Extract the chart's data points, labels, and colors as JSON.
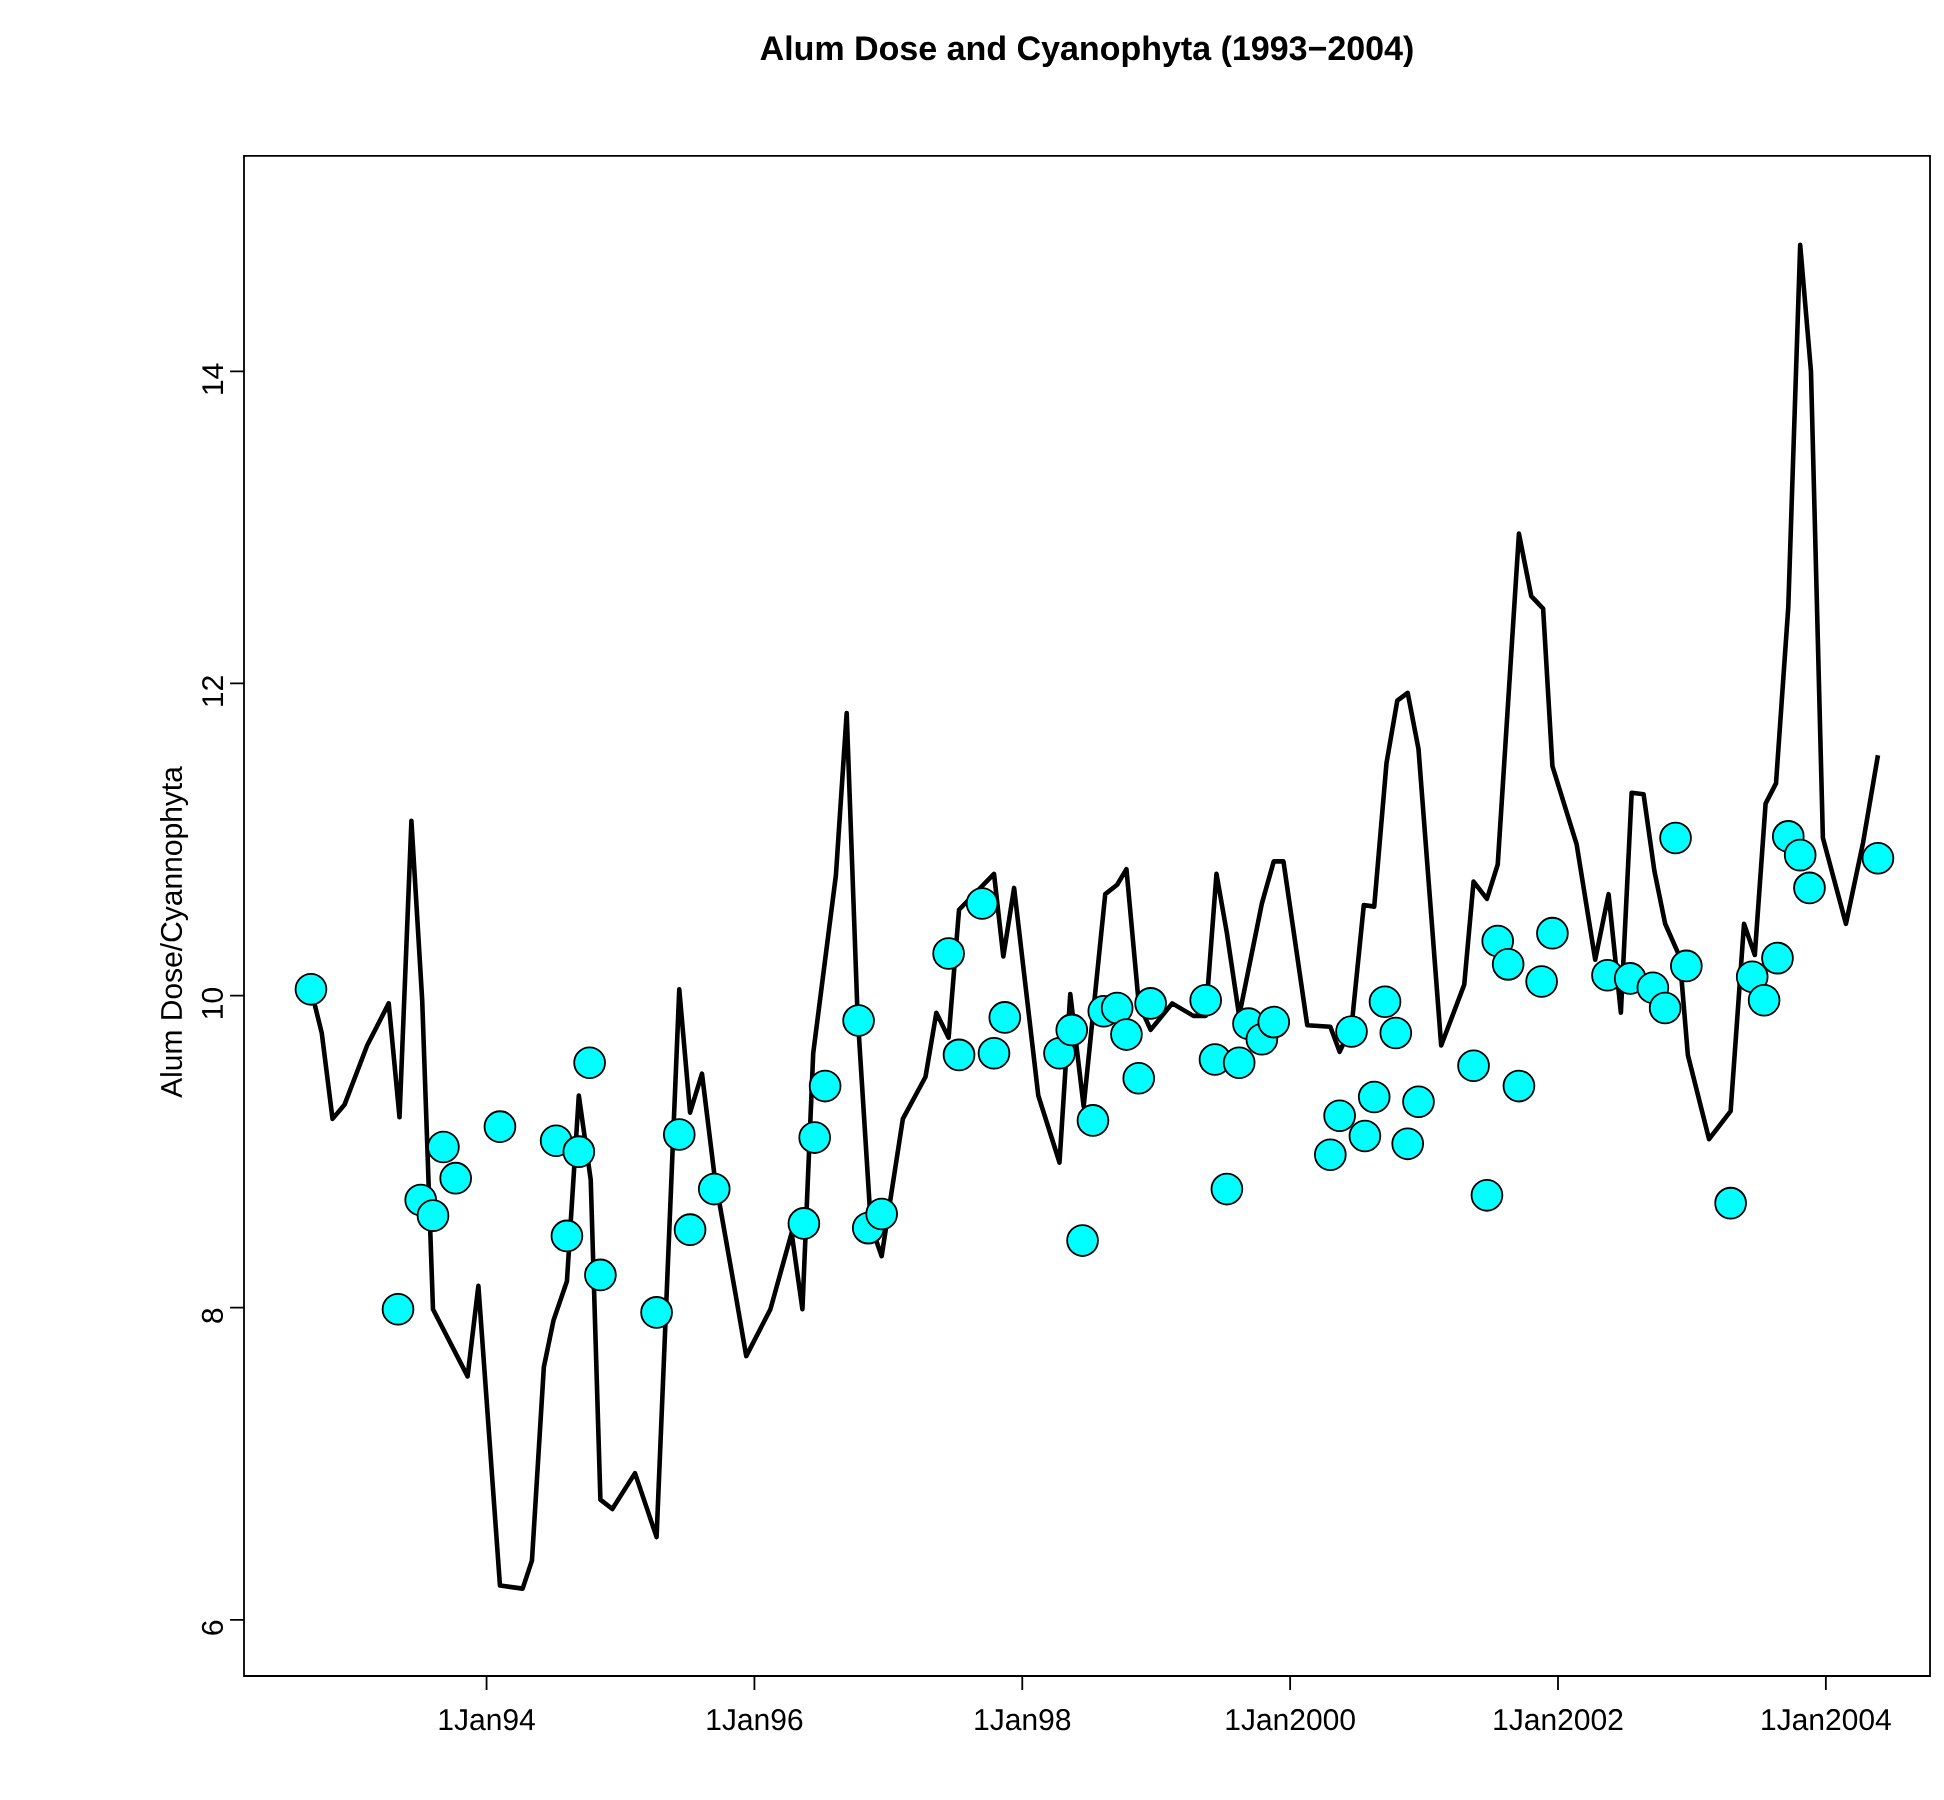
{
  "chart_data": {
    "type": "line",
    "title": "Alum Dose and Cyanophyta (1993−2004)",
    "ylabel": "Alum Dose/Cyannophyta",
    "xlim": [
      "1992-03-09",
      "2004-10-11"
    ],
    "ylim": [
      5.64,
      15.38
    ],
    "xticks": [
      {
        "value": "1994-01-01",
        "label": "1Jan94"
      },
      {
        "value": "1996-01-01",
        "label": "1Jan96"
      },
      {
        "value": "1998-01-01",
        "label": "1Jan98"
      },
      {
        "value": "2000-01-01",
        "label": "1Jan2000"
      },
      {
        "value": "2002-01-01",
        "label": "1Jan2002"
      },
      {
        "value": "2004-01-01",
        "label": "1Jan2004"
      }
    ],
    "yticks": [
      6,
      8,
      10,
      12,
      14
    ],
    "series": [
      {
        "color": "#000000",
        "line_style": "solid",
        "marker": "none",
        "x": [
          "1992-09-09",
          "1992-10-08",
          "1992-11-07",
          "1992-12-09",
          "1993-02-10",
          "1993-04-08",
          "1993-05-07",
          "1993-06-09",
          "1993-07-08",
          "1993-08-07",
          "1993-11-10",
          "1993-12-09",
          "1994-02-07",
          "1994-04-08",
          "1994-05-03",
          "1994-06-05",
          "1994-07-01",
          "1994-08-07",
          "1994-09-09",
          "1994-10-11",
          "1994-11-07",
          "1994-12-09",
          "1995-02-10",
          "1995-04-08",
          "1995-06-09",
          "1995-07-08",
          "1995-08-10",
          "1995-09-13",
          "1995-11-10",
          "1995-12-09",
          "1996-02-14",
          "1996-04-11",
          "1996-05-10",
          "1996-06-09",
          "1996-08-10",
          "1996-09-09",
          "1996-10-08",
          "1996-11-14",
          "1996-12-13",
          "1997-02-10",
          "1997-04-11",
          "1997-05-10",
          "1997-06-13",
          "1997-07-11",
          "1997-10-15",
          "1997-11-10",
          "1997-12-09",
          "1998-02-14",
          "1998-04-11",
          "1998-05-10",
          "1998-06-16",
          "1998-08-14",
          "1998-09-16",
          "1998-10-11",
          "1998-11-14",
          "1998-12-16",
          "1999-02-14",
          "1999-04-11",
          "1999-05-14",
          "1999-06-13",
          "1999-07-11",
          "1999-08-14",
          "1999-10-15",
          "1999-11-17",
          "1999-12-13",
          "2000-02-17",
          "2000-04-19",
          "2000-05-14",
          "2000-06-16",
          "2000-07-19",
          "2000-08-17",
          "2000-09-20",
          "2000-10-19",
          "2000-11-17",
          "2000-12-16",
          "2001-02-17",
          "2001-04-19",
          "2001-05-14",
          "2001-06-20",
          "2001-07-19",
          "2001-09-16",
          "2001-10-19",
          "2001-11-21",
          "2001-12-16",
          "2002-02-21",
          "2002-04-11",
          "2002-05-17",
          "2002-06-20",
          "2002-07-19",
          "2002-08-21",
          "2002-09-20",
          "2002-10-19",
          "2002-11-28",
          "2002-12-20",
          "2003-02-17",
          "2003-04-15",
          "2003-05-21",
          "2003-06-20",
          "2003-07-19",
          "2003-08-17",
          "2003-09-20",
          "2003-10-22",
          "2003-11-21",
          "2003-12-23",
          "2004-02-25",
          "2004-04-11",
          "2004-05-21"
        ],
        "values": [
          10.04,
          9.76,
          9.21,
          9.3,
          9.68,
          9.95,
          9.22,
          11.12,
          9.97,
          7.99,
          7.56,
          8.14,
          6.22,
          6.2,
          6.38,
          7.62,
          7.92,
          8.17,
          9.36,
          8.82,
          6.77,
          6.71,
          6.94,
          6.53,
          10.04,
          9.25,
          9.5,
          8.86,
          8.09,
          7.69,
          7.99,
          8.48,
          7.99,
          9.63,
          10.77,
          11.81,
          9.89,
          8.53,
          8.33,
          9.21,
          9.48,
          9.89,
          9.73,
          10.55,
          10.78,
          10.25,
          10.69,
          9.36,
          8.93,
          10.01,
          9.29,
          10.65,
          10.71,
          10.81,
          9.95,
          9.78,
          9.95,
          9.87,
          9.87,
          10.78,
          10.4,
          9.87,
          10.59,
          10.86,
          10.86,
          9.81,
          9.8,
          9.64,
          9.8,
          10.58,
          10.57,
          11.49,
          11.89,
          11.94,
          11.58,
          9.68,
          10.07,
          10.73,
          10.62,
          10.84,
          12.96,
          12.56,
          12.48,
          11.47,
          10.97,
          10.23,
          10.65,
          9.89,
          11.3,
          11.29,
          10.8,
          10.46,
          10.25,
          9.62,
          9.08,
          9.26,
          10.46,
          10.26,
          11.23,
          11.36,
          12.49,
          14.81,
          14.0,
          11.01,
          10.46,
          10.98,
          11.54
        ]
      },
      {
        "type": "scatter",
        "color": "#00ffff",
        "marker": "circle",
        "x": [
          "1992-09-09",
          "1993-05-03",
          "1993-07-04",
          "1993-08-07",
          "1993-09-05",
          "1993-10-08",
          "1994-02-07",
          "1994-07-08",
          "1994-08-07",
          "1994-09-09",
          "1994-10-08",
          "1994-11-07",
          "1995-04-08",
          "1995-06-09",
          "1995-07-08",
          "1995-09-13",
          "1996-05-14",
          "1996-06-13",
          "1996-07-11",
          "1996-10-11",
          "1996-11-07",
          "1996-12-13",
          "1997-06-13",
          "1997-07-11",
          "1997-09-13",
          "1997-10-15",
          "1997-11-14",
          "1998-04-11",
          "1998-05-14",
          "1998-06-13",
          "1998-07-11",
          "1998-08-10",
          "1998-09-16",
          "1998-10-11",
          "1998-11-14",
          "1998-12-16",
          "1999-05-14",
          "1999-06-09",
          "1999-07-11",
          "1999-08-14",
          "1999-09-09",
          "1999-10-15",
          "1999-11-17",
          "2000-04-19",
          "2000-05-14",
          "2000-06-16",
          "2000-07-22",
          "2000-08-17",
          "2000-09-16",
          "2000-10-15",
          "2000-11-17",
          "2000-12-16",
          "2001-05-14",
          "2001-06-20",
          "2001-07-19",
          "2001-08-17",
          "2001-09-16",
          "2001-11-17",
          "2001-12-16",
          "2002-05-14",
          "2002-07-15",
          "2002-09-16",
          "2002-10-19",
          "2002-11-17",
          "2002-12-16",
          "2003-04-15",
          "2003-06-13",
          "2003-07-15",
          "2003-08-21",
          "2003-09-20",
          "2003-10-22",
          "2003-11-17",
          "2004-05-21"
        ],
        "values": [
          10.04,
          7.99,
          8.69,
          8.59,
          9.03,
          8.83,
          9.16,
          9.07,
          8.46,
          9.0,
          9.57,
          8.21,
          7.97,
          9.11,
          8.5,
          8.76,
          8.54,
          9.09,
          9.42,
          9.84,
          8.51,
          8.6,
          10.27,
          9.62,
          10.59,
          9.63,
          9.86,
          9.63,
          9.78,
          8.43,
          9.2,
          9.9,
          9.92,
          9.75,
          9.47,
          9.95,
          9.97,
          9.59,
          8.76,
          9.57,
          9.82,
          9.72,
          9.83,
          8.98,
          9.23,
          9.77,
          9.1,
          9.35,
          9.96,
          9.76,
          9.05,
          9.32,
          9.55,
          8.72,
          10.35,
          10.2,
          9.42,
          10.09,
          10.4,
          10.13,
          10.11,
          10.05,
          9.92,
          11.01,
          10.19,
          8.67,
          10.12,
          9.97,
          10.24,
          11.02,
          10.9,
          10.69,
          10.88
        ]
      }
    ]
  }
}
